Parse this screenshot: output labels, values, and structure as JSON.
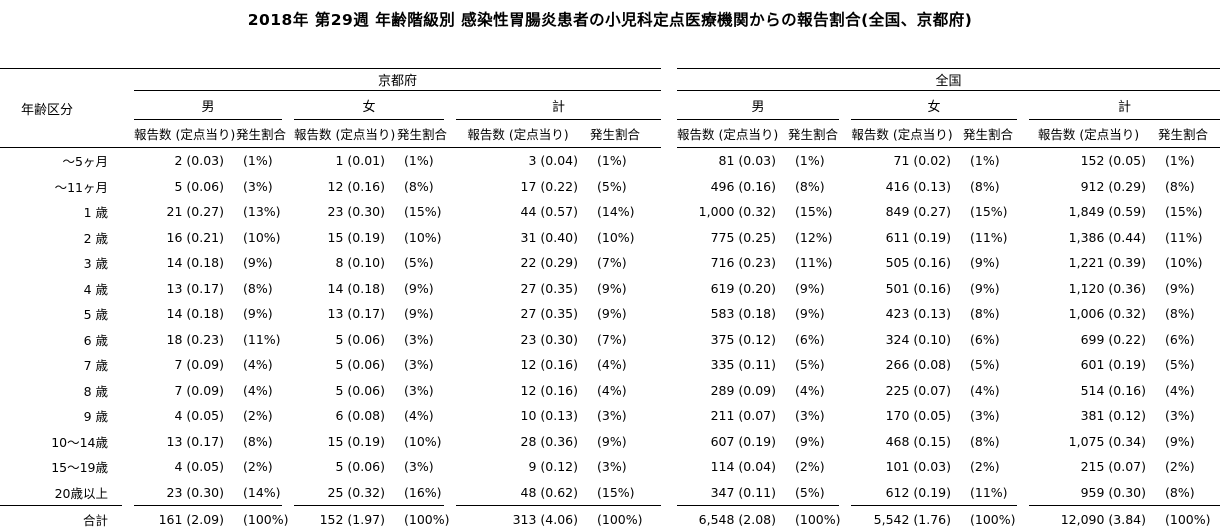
{
  "title": "2018年 第29週 年齢階級別 感染性胃腸炎患者の小児科定点医療機関からの報告割合(全国、京都府)",
  "table": {
    "age_column_header": "年齢区分",
    "sections": [
      {
        "label": "京都府"
      },
      {
        "label": "全国"
      }
    ],
    "gender_headers": [
      "男",
      "女",
      "計"
    ],
    "measure_headers": [
      "報告数 (定点当り)",
      "発生割合"
    ],
    "rows": [
      {
        "age": "～5ヶ月",
        "values": [
          "2 (0.03)",
          "(1%)",
          "1 (0.01)",
          "(1%)",
          "3 (0.04)",
          "(1%)",
          "81 (0.03)",
          "(1%)",
          "71 (0.02)",
          "(1%)",
          "152 (0.05)",
          "(1%)"
        ]
      },
      {
        "age": "～11ヶ月",
        "values": [
          "5 (0.06)",
          "(3%)",
          "12 (0.16)",
          "(8%)",
          "17 (0.22)",
          "(5%)",
          "496 (0.16)",
          "(8%)",
          "416 (0.13)",
          "(8%)",
          "912 (0.29)",
          "(8%)"
        ]
      },
      {
        "age": "1 歳",
        "values": [
          "21 (0.27)",
          "(13%)",
          "23 (0.30)",
          "(15%)",
          "44 (0.57)",
          "(14%)",
          "1,000 (0.32)",
          "(15%)",
          "849 (0.27)",
          "(15%)",
          "1,849 (0.59)",
          "(15%)"
        ]
      },
      {
        "age": "2 歳",
        "values": [
          "16 (0.21)",
          "(10%)",
          "15 (0.19)",
          "(10%)",
          "31 (0.40)",
          "(10%)",
          "775 (0.25)",
          "(12%)",
          "611 (0.19)",
          "(11%)",
          "1,386 (0.44)",
          "(11%)"
        ]
      },
      {
        "age": "3 歳",
        "values": [
          "14 (0.18)",
          "(9%)",
          "8 (0.10)",
          "(5%)",
          "22 (0.29)",
          "(7%)",
          "716 (0.23)",
          "(11%)",
          "505 (0.16)",
          "(9%)",
          "1,221 (0.39)",
          "(10%)"
        ]
      },
      {
        "age": "4 歳",
        "values": [
          "13 (0.17)",
          "(8%)",
          "14 (0.18)",
          "(9%)",
          "27 (0.35)",
          "(9%)",
          "619 (0.20)",
          "(9%)",
          "501 (0.16)",
          "(9%)",
          "1,120 (0.36)",
          "(9%)"
        ]
      },
      {
        "age": "5 歳",
        "values": [
          "14 (0.18)",
          "(9%)",
          "13 (0.17)",
          "(9%)",
          "27 (0.35)",
          "(9%)",
          "583 (0.18)",
          "(9%)",
          "423 (0.13)",
          "(8%)",
          "1,006 (0.32)",
          "(8%)"
        ]
      },
      {
        "age": "6 歳",
        "values": [
          "18 (0.23)",
          "(11%)",
          "5 (0.06)",
          "(3%)",
          "23 (0.30)",
          "(7%)",
          "375 (0.12)",
          "(6%)",
          "324 (0.10)",
          "(6%)",
          "699 (0.22)",
          "(6%)"
        ]
      },
      {
        "age": "7 歳",
        "values": [
          "7 (0.09)",
          "(4%)",
          "5 (0.06)",
          "(3%)",
          "12 (0.16)",
          "(4%)",
          "335 (0.11)",
          "(5%)",
          "266 (0.08)",
          "(5%)",
          "601 (0.19)",
          "(5%)"
        ]
      },
      {
        "age": "8 歳",
        "values": [
          "7 (0.09)",
          "(4%)",
          "5 (0.06)",
          "(3%)",
          "12 (0.16)",
          "(4%)",
          "289 (0.09)",
          "(4%)",
          "225 (0.07)",
          "(4%)",
          "514 (0.16)",
          "(4%)"
        ]
      },
      {
        "age": "9 歳",
        "values": [
          "4 (0.05)",
          "(2%)",
          "6 (0.08)",
          "(4%)",
          "10 (0.13)",
          "(3%)",
          "211 (0.07)",
          "(3%)",
          "170 (0.05)",
          "(3%)",
          "381 (0.12)",
          "(3%)"
        ]
      },
      {
        "age": "10～14歳",
        "values": [
          "13 (0.17)",
          "(8%)",
          "15 (0.19)",
          "(10%)",
          "28 (0.36)",
          "(9%)",
          "607 (0.19)",
          "(9%)",
          "468 (0.15)",
          "(8%)",
          "1,075 (0.34)",
          "(9%)"
        ]
      },
      {
        "age": "15～19歳",
        "values": [
          "4 (0.05)",
          "(2%)",
          "5 (0.06)",
          "(3%)",
          "9 (0.12)",
          "(3%)",
          "114 (0.04)",
          "(2%)",
          "101 (0.03)",
          "(2%)",
          "215 (0.07)",
          "(2%)"
        ]
      },
      {
        "age": "20歳以上",
        "values": [
          "23 (0.30)",
          "(14%)",
          "25 (0.32)",
          "(16%)",
          "48 (0.62)",
          "(15%)",
          "347 (0.11)",
          "(5%)",
          "612 (0.19)",
          "(11%)",
          "959 (0.30)",
          "(8%)"
        ]
      }
    ],
    "total_row": {
      "age": "合計",
      "values": [
        "161 (2.09)",
        "(100%)",
        "152 (1.97)",
        "(100%)",
        "313 (4.06)",
        "(100%)",
        "6,548 (2.08)",
        "(100%)",
        "5,542 (1.76)",
        "(100%)",
        "12,090 (3.84)",
        "(100%)"
      ]
    }
  }
}
